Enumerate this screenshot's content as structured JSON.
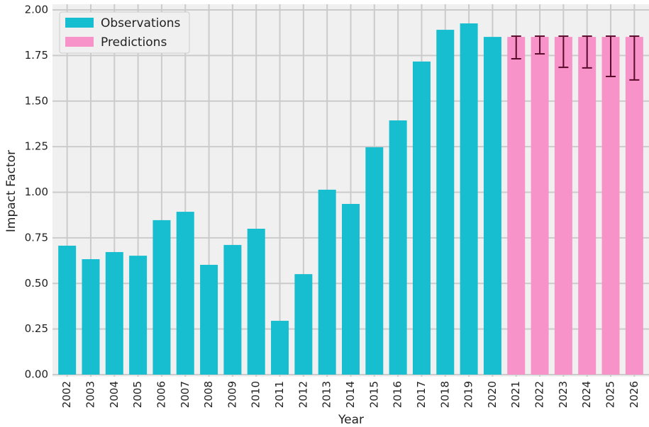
{
  "chart_data": {
    "type": "bar",
    "xlabel": "Year",
    "ylabel": "Impact Factor",
    "categories": [
      "2002",
      "2003",
      "2004",
      "2005",
      "2006",
      "2007",
      "2008",
      "2009",
      "2010",
      "2011",
      "2012",
      "2013",
      "2014",
      "2015",
      "2016",
      "2017",
      "2018",
      "2019",
      "2020",
      "2021",
      "2022",
      "2023",
      "2024",
      "2025",
      "2026"
    ],
    "series": [
      {
        "name": "Observations",
        "color": "#17becf",
        "values": [
          0.707,
          0.633,
          0.672,
          0.652,
          0.847,
          0.893,
          0.602,
          0.711,
          0.8,
          0.295,
          0.551,
          1.014,
          0.936,
          1.247,
          1.394,
          1.717,
          1.891,
          1.926,
          1.852,
          null,
          null,
          null,
          null,
          null,
          null
        ]
      },
      {
        "name": "Predictions",
        "color": "#f793c8",
        "values": [
          null,
          null,
          null,
          null,
          null,
          null,
          null,
          null,
          null,
          null,
          null,
          null,
          null,
          null,
          null,
          null,
          null,
          null,
          null,
          1.852,
          1.852,
          1.852,
          1.852,
          1.852,
          1.852
        ],
        "errors_minus": [
          null,
          null,
          null,
          null,
          null,
          null,
          null,
          null,
          null,
          null,
          null,
          null,
          null,
          null,
          null,
          null,
          null,
          null,
          null,
          0.12,
          0.093,
          0.167,
          0.17,
          0.217,
          0.236
        ],
        "errors_plus": [
          null,
          null,
          null,
          null,
          null,
          null,
          null,
          null,
          null,
          null,
          null,
          null,
          null,
          null,
          null,
          null,
          null,
          null,
          null,
          0.004,
          0.004,
          0.004,
          0.004,
          0.004,
          0.004
        ],
        "error_color": "#5a0a2a"
      }
    ],
    "ylim": [
      0,
      2
    ],
    "yticks": [
      {
        "value": 0,
        "label": "0.00"
      },
      0.25,
      {
        "value": 0.5,
        "label": "0.50"
      },
      0.75,
      {
        "value": 1,
        "label": "1.00"
      },
      1.25,
      {
        "value": 1.5,
        "label": "1.50"
      },
      1.75,
      {
        "value": 2,
        "label": "2.00"
      }
    ],
    "grid": true,
    "legend": "upper left"
  }
}
